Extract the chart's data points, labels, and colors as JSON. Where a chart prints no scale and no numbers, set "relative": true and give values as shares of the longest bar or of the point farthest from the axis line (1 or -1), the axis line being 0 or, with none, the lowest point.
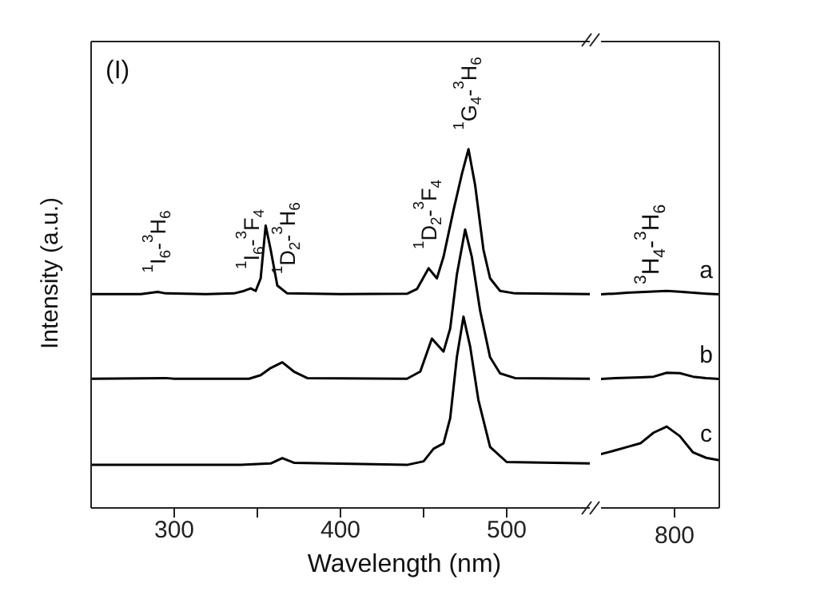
{
  "chart_data": [
    {
      "type": "line",
      "relative": true,
      "xlabel": "Wavelength (nm)",
      "ylabel": "Intensity (a.u.)",
      "xlim": [
        250,
        550
      ],
      "xticks": [
        300,
        {
          "value": 350,
          "label": null
        },
        400,
        {
          "value": 450,
          "label": null
        },
        500
      ],
      "tick_labels": "x",
      "legend": false,
      "grid": false,
      "marker": "none",
      "line_style": "solid",
      "annotations": [
        "(I)",
        {
          "text": "$^{1}$I$_{6}$-$^{3}$H$_{6}$",
          "x": 290,
          "y": 0.602
        },
        {
          "text": "$^{1}$I$_{6}$-$^{3}$F$_{4}$",
          "x": 346,
          "y": 0.612
        },
        {
          "text": "$^{1}$D$_{2}$-$^{3}$H$_{6}$",
          "x": 368,
          "y": 0.598
        },
        {
          "text": "$^{1}$D$_{2}$-$^{3}$F$_{4}$",
          "x": 453,
          "y": 0.668
        },
        {
          "text": "$^{1}$G$_{4}$-$^{3}$H$_{6}$",
          "x": 477,
          "y": 1.0
        }
      ],
      "series": [
        {
          "color": "#000000",
          "x": [
            250,
            280,
            290,
            295,
            320,
            336,
            342,
            346,
            349,
            352,
            355,
            358,
            362,
            368,
            400,
            440,
            446,
            453,
            458,
            462,
            468,
            473,
            477,
            481,
            486,
            490,
            496,
            505,
            550
          ],
          "values": [
            0.596,
            0.596,
            0.602,
            0.598,
            0.596,
            0.598,
            0.605,
            0.612,
            0.605,
            0.64,
            0.787,
            0.72,
            0.62,
            0.598,
            0.596,
            0.597,
            0.61,
            0.668,
            0.64,
            0.7,
            0.83,
            0.93,
            1.0,
            0.9,
            0.72,
            0.64,
            0.605,
            0.598,
            0.596
          ]
        },
        {
          "color": "#000000",
          "x": [
            250,
            295,
            300,
            345,
            352,
            358,
            365,
            372,
            380,
            440,
            448,
            455,
            462,
            466,
            470,
            475,
            479,
            484,
            490,
            496,
            505,
            550
          ],
          "values": [
            0.36,
            0.362,
            0.36,
            0.36,
            0.37,
            0.39,
            0.406,
            0.38,
            0.362,
            0.36,
            0.38,
            0.472,
            0.436,
            0.5,
            0.65,
            0.776,
            0.7,
            0.55,
            0.42,
            0.375,
            0.362,
            0.36
          ]
        },
        {
          "color": "#000000",
          "x": [
            250,
            340,
            358,
            365,
            372,
            440,
            450,
            456,
            462,
            466,
            470,
            474,
            478,
            483,
            490,
            500,
            550
          ],
          "values": [
            0.12,
            0.12,
            0.124,
            0.139,
            0.126,
            0.12,
            0.13,
            0.165,
            0.18,
            0.25,
            0.42,
            0.533,
            0.45,
            0.3,
            0.17,
            0.128,
            0.124
          ]
        }
      ]
    },
    {
      "type": "line",
      "relative": true,
      "tick_labels": false,
      "legend": false,
      "grid": false,
      "marker": "none",
      "line_style": "solid",
      "annotations": [
        "800",
        "$^{3}$H$_{4}$-$^{3}$H$_{6}$"
      ],
      "categories": [
        null,
        null,
        null,
        null,
        null,
        null,
        null,
        null,
        null,
        null
      ],
      "series": [
        {
          "name": "a",
          "color": "#000000",
          "values": [
            0.985,
            0.988,
            0.992,
            0.995,
            0.998,
            1.0,
            0.997,
            0.992,
            0.988,
            0.985
          ]
        },
        {
          "name": "b",
          "color": "#000000",
          "values": [
            0.595,
            0.598,
            0.6,
            0.602,
            0.605,
            0.623,
            0.621,
            0.605,
            0.598,
            0.595
          ]
        },
        {
          "name": "c",
          "color": "#000000",
          "values": [
            0.248,
            0.264,
            0.281,
            0.298,
            0.347,
            0.375,
            0.331,
            0.256,
            0.231,
            0.22
          ]
        }
      ]
    }
  ]
}
